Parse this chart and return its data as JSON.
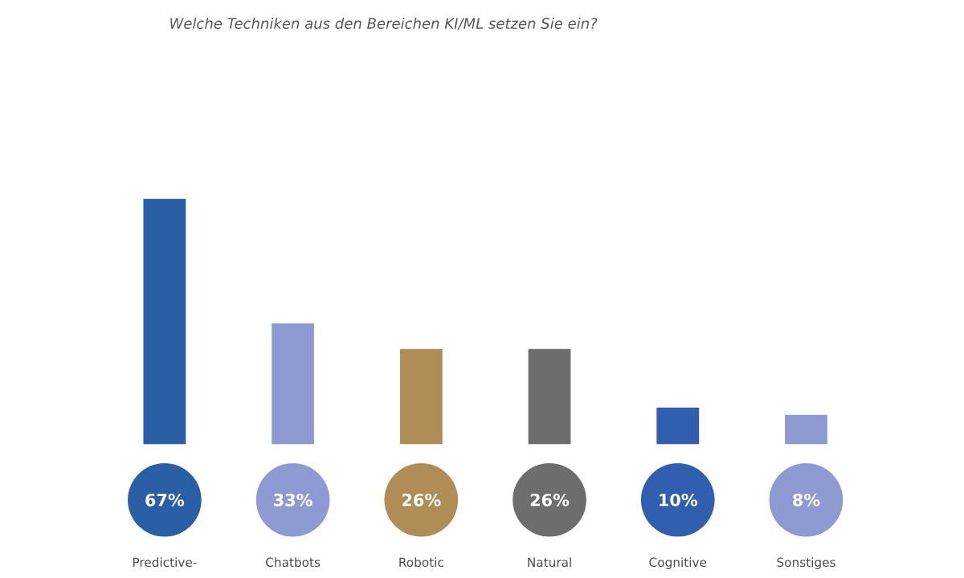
{
  "chart_data": {
    "type": "bar",
    "subtitle": "Welche Techniken aus den Bereichen KI/ML setzen Sie ein?",
    "categories": [
      "Predictive-",
      "Chatbots",
      "Robotic",
      "Natural",
      "Cognitive",
      "Sonstiges"
    ],
    "values": [
      67,
      33,
      26,
      26,
      10,
      8
    ],
    "colors": [
      "#2a5ea5",
      "#8e9bd3",
      "#b08d57",
      "#6d6d6b",
      "#2f5fae",
      "#8e9bd3"
    ],
    "value_labels": [
      "67%",
      "33%",
      "26%",
      "26%",
      "10%",
      "8%"
    ]
  }
}
